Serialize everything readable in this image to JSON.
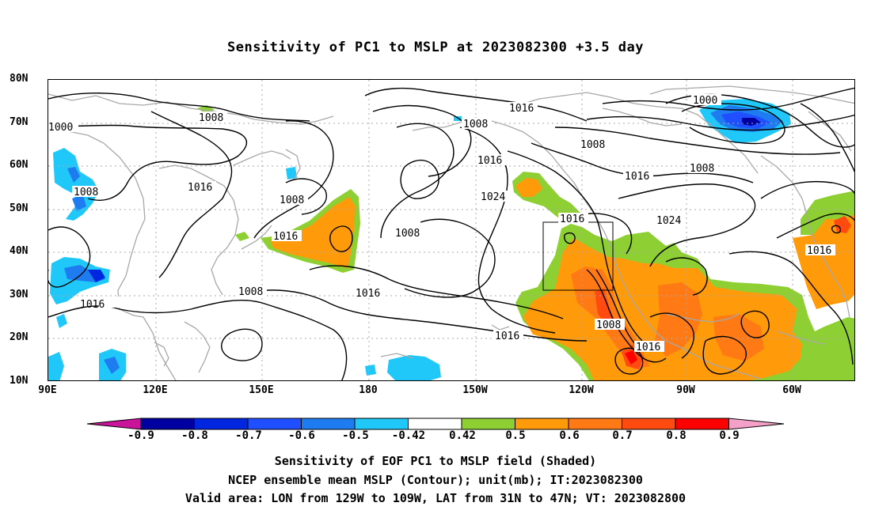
{
  "title": "Sensitivity of PC1 to MSLP at 2023082300 +3.5 day",
  "lat_labels": [
    "80N",
    "70N",
    "60N",
    "50N",
    "40N",
    "30N",
    "20N",
    "10N"
  ],
  "lon_labels": [
    "90E",
    "120E",
    "150E",
    "180",
    "150W",
    "120W",
    "90W",
    "60W"
  ],
  "contour_labels": {
    "c1": "1000",
    "c2": "1008",
    "c3": "1016",
    "c4": "1008",
    "c5": "1016",
    "c6": "1008",
    "c7": "1016",
    "c8": "1008",
    "c9": "1016",
    "c10": "1008",
    "c11": "1016",
    "c12": "1024",
    "c13": "1016",
    "c14": "1008",
    "c15": "1016",
    "c16": "1008",
    "c17": "1016",
    "c18": "1008",
    "c19": "1016",
    "c20": "1024",
    "c21": "1000",
    "c22": "1016",
    "c23": "1008",
    "c24": "1016"
  },
  "colorbar": {
    "labels": [
      "-0.9",
      "-0.8",
      "-0.7",
      "-0.6",
      "-0.5",
      "-0.42",
      "0.42",
      "0.5",
      "0.6",
      "0.7",
      "0.8",
      "0.9"
    ],
    "colors": [
      "#0000a0",
      "#0026e0",
      "#1f4fff",
      "#1e7cf0",
      "#1fc8f8",
      "#ffffff",
      "#8ed033",
      "#ff9a0a",
      "#ff7a14",
      "#ff4a10",
      "#ff0000"
    ],
    "low_arrow_color": "#c8139a",
    "high_arrow_color": "#f5a0c8"
  },
  "caption": {
    "line1": "Sensitivity of EOF PC1 to MSLP field (Shaded)",
    "line2": "NCEP ensemble mean MSLP (Contour); unit(mb); IT:2023082300",
    "line3": "Valid area: LON from 129W to 109W, LAT from 31N to 47N; VT: 2023082800"
  }
}
